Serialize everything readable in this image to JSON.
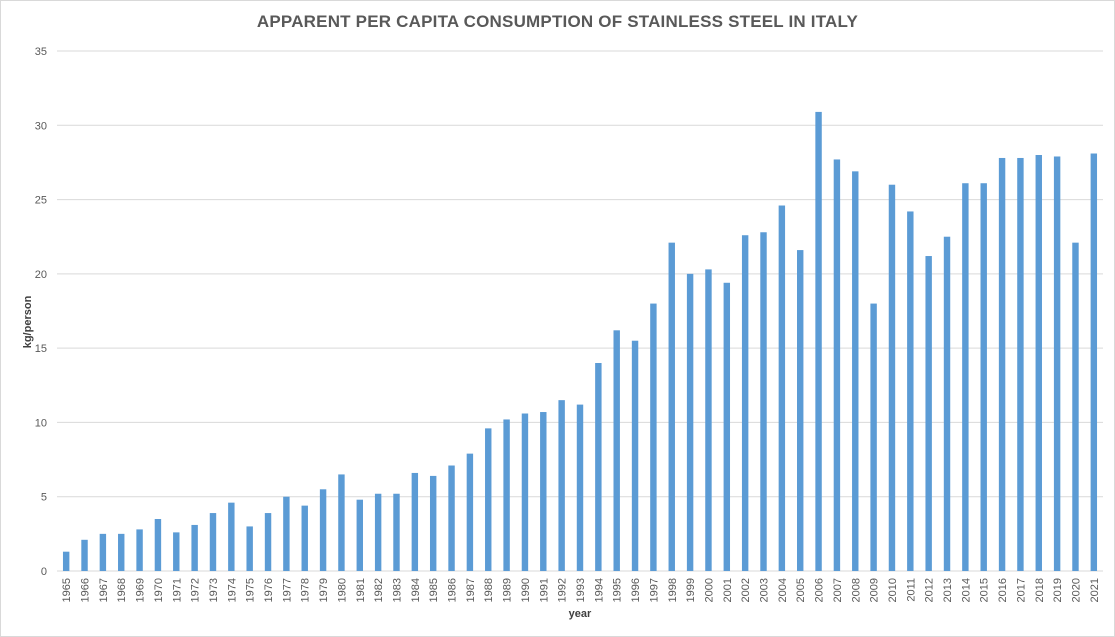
{
  "chart_data": {
    "type": "bar",
    "title": "APPARENT PER CAPITA CONSUMPTION OF STAINLESS STEEL IN ITALY",
    "xlabel": "year",
    "ylabel": "kg/person",
    "ylim": [
      0,
      35
    ],
    "yticks": [
      0,
      5,
      10,
      15,
      20,
      25,
      30,
      35
    ],
    "grid": true,
    "legend": "none",
    "bar_color": "#5b9bd5",
    "categories": [
      "1965",
      "1966",
      "1967",
      "1968",
      "1969",
      "1970",
      "1971",
      "1972",
      "1973",
      "1974",
      "1975",
      "1976",
      "1977",
      "1978",
      "1979",
      "1980",
      "1981",
      "1982",
      "1983",
      "1984",
      "1985",
      "1986",
      "1987",
      "1988",
      "1989",
      "1990",
      "1991",
      "1992",
      "1993",
      "1994",
      "1995",
      "1996",
      "1997",
      "1998",
      "1999",
      "2000",
      "2001",
      "2002",
      "2003",
      "2004",
      "2005",
      "2006",
      "2007",
      "2008",
      "2009",
      "2010",
      "2011",
      "2012",
      "2013",
      "2014",
      "2015",
      "2016",
      "2017",
      "2018",
      "2019",
      "2020",
      "2021"
    ],
    "values": [
      1.3,
      2.1,
      2.5,
      2.5,
      2.8,
      3.5,
      2.6,
      3.1,
      3.9,
      4.6,
      3.0,
      3.9,
      5.0,
      4.4,
      5.5,
      6.5,
      4.8,
      5.2,
      5.2,
      6.6,
      6.4,
      7.1,
      7.9,
      9.6,
      10.2,
      10.6,
      10.7,
      11.5,
      11.2,
      14.0,
      16.2,
      15.5,
      18.0,
      22.1,
      20.0,
      20.3,
      19.4,
      22.6,
      22.8,
      24.6,
      21.6,
      30.9,
      27.7,
      26.9,
      18.0,
      26.0,
      24.2,
      21.2,
      22.5,
      26.1,
      26.1,
      27.8,
      27.8,
      28.0,
      27.9,
      22.1,
      28.1
    ]
  }
}
